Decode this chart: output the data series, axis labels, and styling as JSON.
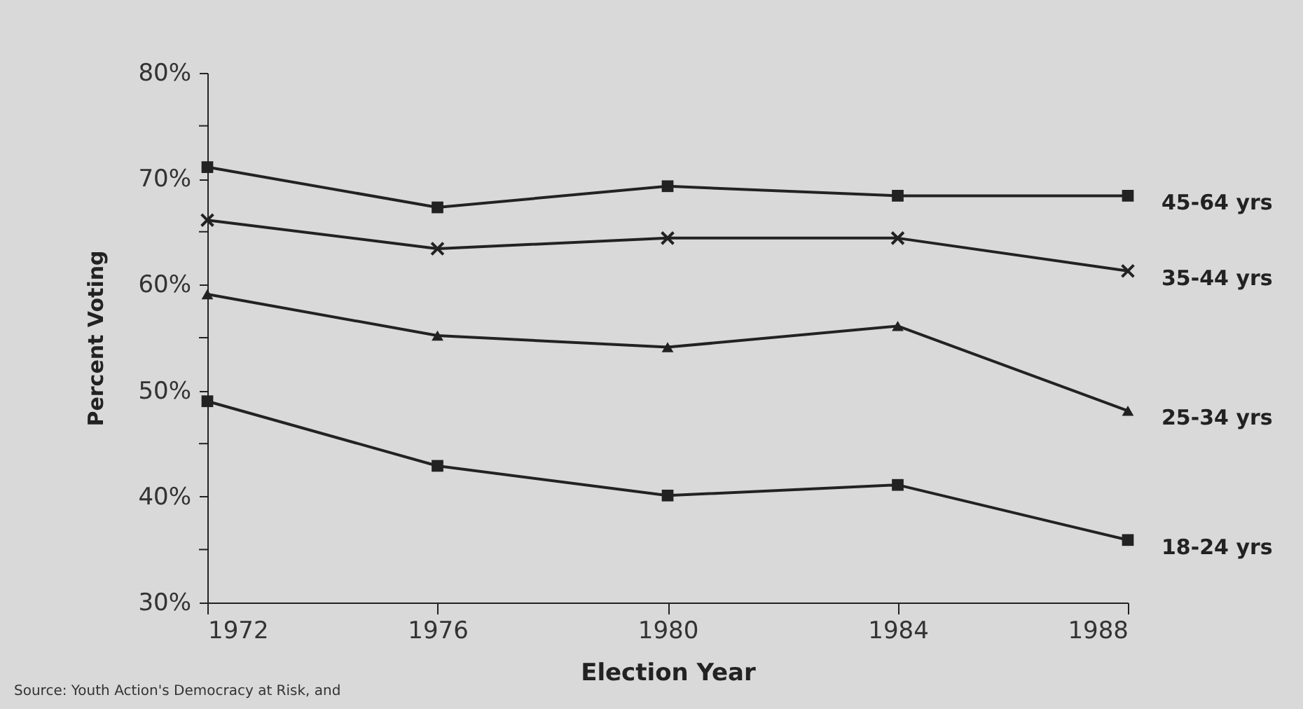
{
  "chart_data": {
    "type": "line",
    "xlabel": "Election Year",
    "ylabel": "Percent Voting",
    "annotations": [
      "Source: Youth Action's Democracy at Risk, and"
    ],
    "x": [
      1972,
      1976,
      1980,
      1984,
      1988
    ],
    "xlim": [
      1972,
      1988
    ],
    "xticks": [
      1972,
      1976,
      1980,
      1984,
      1988
    ],
    "ylim": [
      30,
      80
    ],
    "yticks": [
      {
        "value": 30,
        "label": "30%"
      },
      {
        "value": 35,
        "label": null
      },
      {
        "value": 40,
        "label": "40%"
      },
      {
        "value": 45,
        "label": null
      },
      {
        "value": 50,
        "label": "50%"
      },
      {
        "value": 55,
        "label": null
      },
      {
        "value": 60,
        "label": "60%"
      },
      {
        "value": 65,
        "label": null
      },
      {
        "value": 70,
        "label": "70%"
      },
      {
        "value": 75,
        "label": null
      },
      {
        "value": 80,
        "label": "80%"
      }
    ],
    "legend": false,
    "line_style": "solid",
    "series": [
      {
        "name": "45-64 yrs",
        "color": "#222222",
        "marker": "square",
        "values": [
          71.1,
          67.3,
          69.3,
          68.4,
          68.4
        ]
      },
      {
        "name": "35-44 yrs",
        "color": "#222222",
        "marker": "cross",
        "values": [
          66.1,
          63.4,
          64.4,
          64.4,
          61.3
        ]
      },
      {
        "name": "25-34 yrs",
        "color": "#222222",
        "marker": "triangle",
        "values": [
          59.1,
          55.2,
          54.1,
          56.1,
          48.1
        ]
      },
      {
        "name": "18-24 yrs",
        "color": "#222222",
        "marker": "square",
        "values": [
          49.0,
          42.9,
          40.1,
          41.1,
          35.9
        ]
      }
    ]
  }
}
